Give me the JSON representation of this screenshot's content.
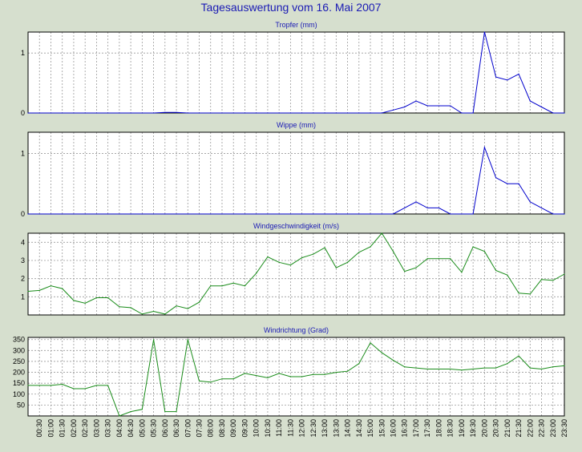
{
  "title": "Tagesauswertung vom 16. Mai 2007",
  "colors": {
    "background": "#d6dfce",
    "plot_bg": "#ffffff",
    "grid": "#9a9a9a",
    "title": "#1a1ab4",
    "blue_series": "#0000cc",
    "green_series": "#1a8c1a"
  },
  "x_labels": [
    "00:30",
    "01:00",
    "01:30",
    "02:00",
    "02:30",
    "03:00",
    "03:30",
    "04:00",
    "04:30",
    "05:00",
    "05:30",
    "06:00",
    "06:30",
    "07:00",
    "07:30",
    "08:00",
    "08:30",
    "09:00",
    "09:30",
    "10:00",
    "10:30",
    "11:00",
    "11:30",
    "12:00",
    "12:30",
    "13:00",
    "13:30",
    "14:00",
    "14:30",
    "15:00",
    "15:30",
    "16:00",
    "16:30",
    "17:00",
    "17:30",
    "18:00",
    "18:30",
    "19:00",
    "19:30",
    "20:00",
    "20:30",
    "21:00",
    "21:30",
    "22:00",
    "22:30",
    "23:00",
    "23:30"
  ],
  "chart_data": [
    {
      "type": "line",
      "title": "Tropfer (mm)",
      "yticks": [
        0,
        1
      ],
      "ylim": [
        0,
        1.35
      ],
      "x": [
        "00:00",
        "00:30",
        "01:00",
        "01:30",
        "02:00",
        "02:30",
        "03:00",
        "03:30",
        "04:00",
        "04:30",
        "05:00",
        "05:30",
        "06:00",
        "06:30",
        "07:00",
        "07:30",
        "08:00",
        "08:30",
        "09:00",
        "09:30",
        "10:00",
        "10:30",
        "11:00",
        "11:30",
        "12:00",
        "12:30",
        "13:00",
        "13:30",
        "14:00",
        "14:30",
        "15:00",
        "15:30",
        "16:00",
        "16:30",
        "17:00",
        "17:30",
        "18:00",
        "18:30",
        "19:00",
        "19:30",
        "20:00",
        "20:30",
        "21:00",
        "21:30",
        "22:00",
        "22:30",
        "23:00",
        "23:30"
      ],
      "series": [
        {
          "color": "#0000cc",
          "values": [
            0,
            0,
            0,
            0,
            0,
            0,
            0,
            0,
            0,
            0,
            0,
            0,
            0.01,
            0.01,
            0,
            0,
            0,
            0,
            0,
            0,
            0,
            0,
            0,
            0,
            0,
            0,
            0,
            0,
            0,
            0,
            0,
            0,
            0.05,
            0.1,
            0.2,
            0.12,
            0.12,
            0.12,
            0,
            0,
            1.35,
            0.6,
            0.55,
            0.65,
            0.2,
            0.1,
            0,
            0
          ]
        }
      ]
    },
    {
      "type": "line",
      "title": "Wippe (mm)",
      "yticks": [
        0,
        1
      ],
      "ylim": [
        0,
        1.35
      ],
      "x": [
        "00:00",
        "00:30",
        "01:00",
        "01:30",
        "02:00",
        "02:30",
        "03:00",
        "03:30",
        "04:00",
        "04:30",
        "05:00",
        "05:30",
        "06:00",
        "06:30",
        "07:00",
        "07:30",
        "08:00",
        "08:30",
        "09:00",
        "09:30",
        "10:00",
        "10:30",
        "11:00",
        "11:30",
        "12:00",
        "12:30",
        "13:00",
        "13:30",
        "14:00",
        "14:30",
        "15:00",
        "15:30",
        "16:00",
        "16:30",
        "17:00",
        "17:30",
        "18:00",
        "18:30",
        "19:00",
        "19:30",
        "20:00",
        "20:30",
        "21:00",
        "21:30",
        "22:00",
        "22:30",
        "23:00",
        "23:30"
      ],
      "series": [
        {
          "color": "#0000cc",
          "values": [
            0,
            0,
            0,
            0,
            0,
            0,
            0,
            0,
            0,
            0,
            0,
            0,
            0,
            0,
            0,
            0,
            0,
            0,
            0,
            0,
            0,
            0,
            0,
            0,
            0,
            0,
            0,
            0,
            0,
            0,
            0,
            0,
            0,
            0.1,
            0.2,
            0.1,
            0.1,
            0,
            0,
            0,
            1.1,
            0.6,
            0.5,
            0.5,
            0.2,
            0.1,
            0,
            0
          ]
        }
      ]
    },
    {
      "type": "line",
      "title": "Windgeschwindigkeit (m/s)",
      "yticks": [
        1,
        2,
        3,
        4
      ],
      "ylim": [
        0,
        4.5
      ],
      "x": [
        "00:00",
        "00:30",
        "01:00",
        "01:30",
        "02:00",
        "02:30",
        "03:00",
        "03:30",
        "04:00",
        "04:30",
        "05:00",
        "05:30",
        "06:00",
        "06:30",
        "07:00",
        "07:30",
        "08:00",
        "08:30",
        "09:00",
        "09:30",
        "10:00",
        "10:30",
        "11:00",
        "11:30",
        "12:00",
        "12:30",
        "13:00",
        "13:30",
        "14:00",
        "14:30",
        "15:00",
        "15:30",
        "16:00",
        "16:30",
        "17:00",
        "17:30",
        "18:00",
        "18:30",
        "19:00",
        "19:30",
        "20:00",
        "20:30",
        "21:00",
        "21:30",
        "22:00",
        "22:30",
        "23:00",
        "23:30"
      ],
      "series": [
        {
          "color": "#1a8c1a",
          "values": [
            1.3,
            1.35,
            1.6,
            1.45,
            0.8,
            0.65,
            0.95,
            0.95,
            0.45,
            0.4,
            0.05,
            0.2,
            0.05,
            0.5,
            0.35,
            0.7,
            1.6,
            1.6,
            1.75,
            1.6,
            2.3,
            3.2,
            2.9,
            2.75,
            3.15,
            3.35,
            3.7,
            2.6,
            2.9,
            3.45,
            3.75,
            4.5,
            3.5,
            2.4,
            2.6,
            3.1,
            3.1,
            3.1,
            2.35,
            3.75,
            3.5,
            2.45,
            2.2,
            1.2,
            1.15,
            1.95,
            1.9,
            2.25
          ]
        }
      ]
    },
    {
      "type": "line",
      "title": "Windrichtung (Grad)",
      "yticks": [
        50,
        100,
        150,
        200,
        250,
        300,
        350
      ],
      "ylim": [
        0,
        360
      ],
      "x": [
        "00:00",
        "00:30",
        "01:00",
        "01:30",
        "02:00",
        "02:30",
        "03:00",
        "03:30",
        "04:00",
        "04:30",
        "05:00",
        "05:30",
        "06:00",
        "06:30",
        "07:00",
        "07:30",
        "08:00",
        "08:30",
        "09:00",
        "09:30",
        "10:00",
        "10:30",
        "11:00",
        "11:30",
        "12:00",
        "12:30",
        "13:00",
        "13:30",
        "14:00",
        "14:30",
        "15:00",
        "15:30",
        "16:00",
        "16:30",
        "17:00",
        "17:30",
        "18:00",
        "18:30",
        "19:00",
        "19:30",
        "20:00",
        "20:30",
        "21:00",
        "21:30",
        "22:00",
        "22:30",
        "23:00",
        "23:30"
      ],
      "series": [
        {
          "color": "#1a8c1a",
          "values": [
            140,
            140,
            140,
            145,
            125,
            125,
            140,
            140,
            0,
            20,
            30,
            350,
            20,
            20,
            350,
            160,
            155,
            170,
            170,
            195,
            185,
            175,
            195,
            180,
            180,
            190,
            190,
            200,
            205,
            240,
            335,
            290,
            255,
            225,
            220,
            215,
            215,
            215,
            210,
            215,
            220,
            220,
            240,
            275,
            220,
            215,
            225,
            230
          ]
        }
      ]
    }
  ]
}
